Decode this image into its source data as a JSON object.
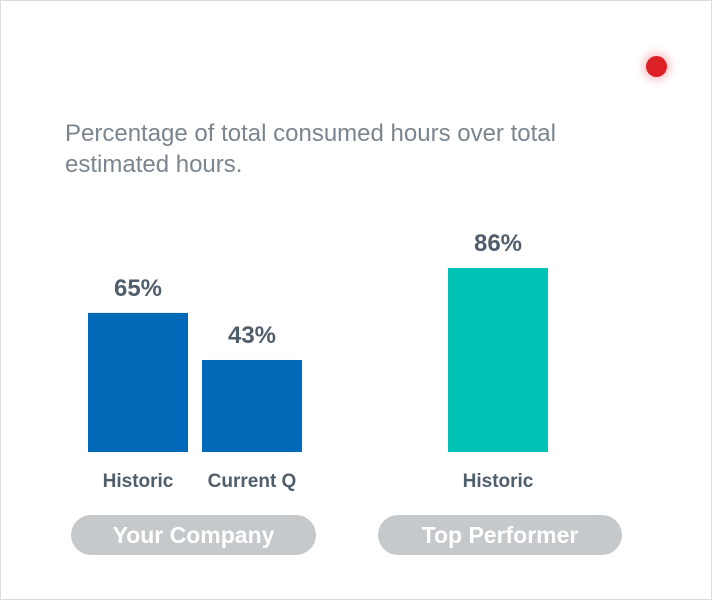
{
  "description": "Percentage of total consumed hours over total estimated hours.",
  "status_indicator": {
    "color": "#dd1f26"
  },
  "chart_data": {
    "type": "bar",
    "title": "",
    "ylim": [
      0,
      100
    ],
    "grid": false,
    "groups": [
      "Your Company",
      "Top Performer"
    ],
    "bars": [
      {
        "group": "Your Company",
        "category": "Historic",
        "value": 65,
        "label": "65%",
        "color": "#006ab8"
      },
      {
        "group": "Your Company",
        "category": "Current Q",
        "value": 43,
        "label": "43%",
        "color": "#006ab8"
      },
      {
        "group": "Top Performer",
        "category": "Historic",
        "value": 86,
        "label": "86%",
        "color": "#00c2b5"
      }
    ]
  }
}
